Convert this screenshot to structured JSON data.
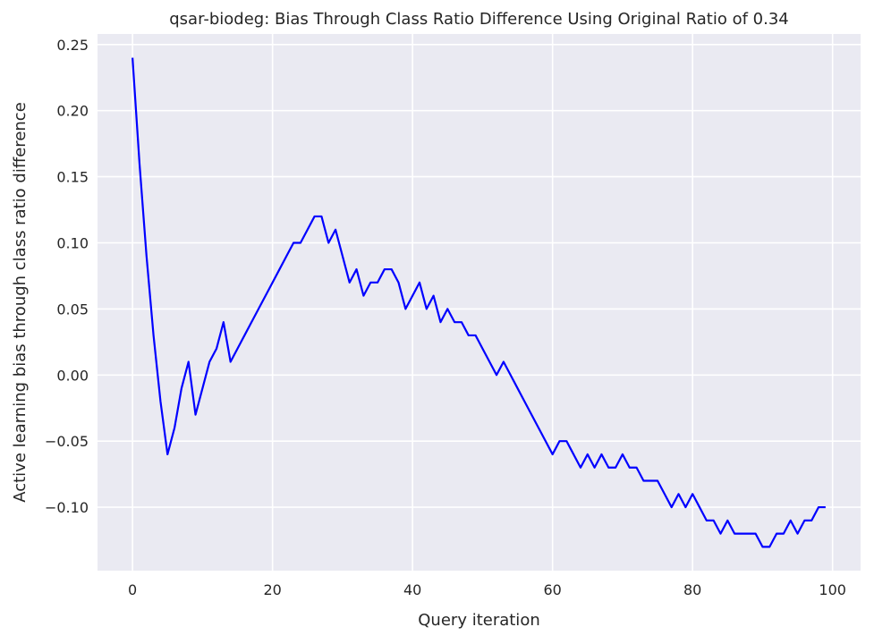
{
  "chart_data": {
    "type": "line",
    "title": "qsar-biodeg: Bias Through Class Ratio Difference Using Original Ratio of 0.34",
    "xlabel": "Query iteration",
    "ylabel": "Active learning bias through class ratio difference",
    "xlim": [
      -5,
      104
    ],
    "ylim": [
      -0.148,
      0.258
    ],
    "xticks": [
      0,
      20,
      40,
      60,
      80,
      100
    ],
    "xtick_labels": [
      "0",
      "20",
      "40",
      "60",
      "80",
      "100"
    ],
    "yticks": [
      -0.1,
      -0.05,
      0.0,
      0.05,
      0.1,
      0.15,
      0.2,
      0.25
    ],
    "ytick_labels": [
      "−0.10",
      "−0.05",
      "0.00",
      "0.05",
      "0.10",
      "0.15",
      "0.20",
      "0.25"
    ],
    "grid": true,
    "background": "#eaeaf2",
    "grid_color": "#ffffff",
    "series": [
      {
        "color": "#0000ff",
        "x": [
          0,
          1,
          2,
          3,
          4,
          5,
          6,
          7,
          8,
          9,
          10,
          11,
          12,
          13,
          14,
          15,
          16,
          17,
          18,
          19,
          20,
          21,
          22,
          23,
          24,
          25,
          26,
          27,
          28,
          29,
          30,
          31,
          32,
          33,
          34,
          35,
          36,
          37,
          38,
          39,
          40,
          41,
          42,
          43,
          44,
          45,
          46,
          47,
          48,
          49,
          50,
          51,
          52,
          53,
          54,
          55,
          56,
          57,
          58,
          59,
          60,
          61,
          62,
          63,
          64,
          65,
          66,
          67,
          68,
          69,
          70,
          71,
          72,
          73,
          74,
          75,
          76,
          77,
          78,
          79,
          80,
          81,
          82,
          83,
          84,
          85,
          86,
          87,
          88,
          89,
          90,
          91,
          92,
          93,
          94,
          95,
          96,
          97,
          98,
          99
        ],
        "y": [
          0.24,
          0.16,
          0.09,
          0.03,
          -0.02,
          -0.06,
          -0.04,
          -0.01,
          0.01,
          -0.03,
          -0.01,
          0.01,
          0.02,
          0.04,
          0.01,
          0.02,
          0.03,
          0.04,
          0.05,
          0.06,
          0.07,
          0.08,
          0.09,
          0.1,
          0.1,
          0.11,
          0.12,
          0.12,
          0.1,
          0.11,
          0.09,
          0.07,
          0.08,
          0.06,
          0.07,
          0.07,
          0.08,
          0.08,
          0.07,
          0.05,
          0.06,
          0.07,
          0.05,
          0.06,
          0.04,
          0.05,
          0.04,
          0.04,
          0.03,
          0.03,
          0.02,
          0.01,
          0.0,
          0.01,
          0.0,
          -0.01,
          -0.02,
          -0.03,
          -0.04,
          -0.05,
          -0.06,
          -0.05,
          -0.05,
          -0.06,
          -0.07,
          -0.06,
          -0.07,
          -0.06,
          -0.07,
          -0.07,
          -0.06,
          -0.07,
          -0.07,
          -0.08,
          -0.08,
          -0.08,
          -0.09,
          -0.1,
          -0.09,
          -0.1,
          -0.09,
          -0.1,
          -0.11,
          -0.11,
          -0.12,
          -0.11,
          -0.12,
          -0.12,
          -0.12,
          -0.12,
          -0.13,
          -0.13,
          -0.12,
          -0.12,
          -0.11,
          -0.12,
          -0.11,
          -0.11,
          -0.1,
          -0.1
        ]
      }
    ]
  }
}
